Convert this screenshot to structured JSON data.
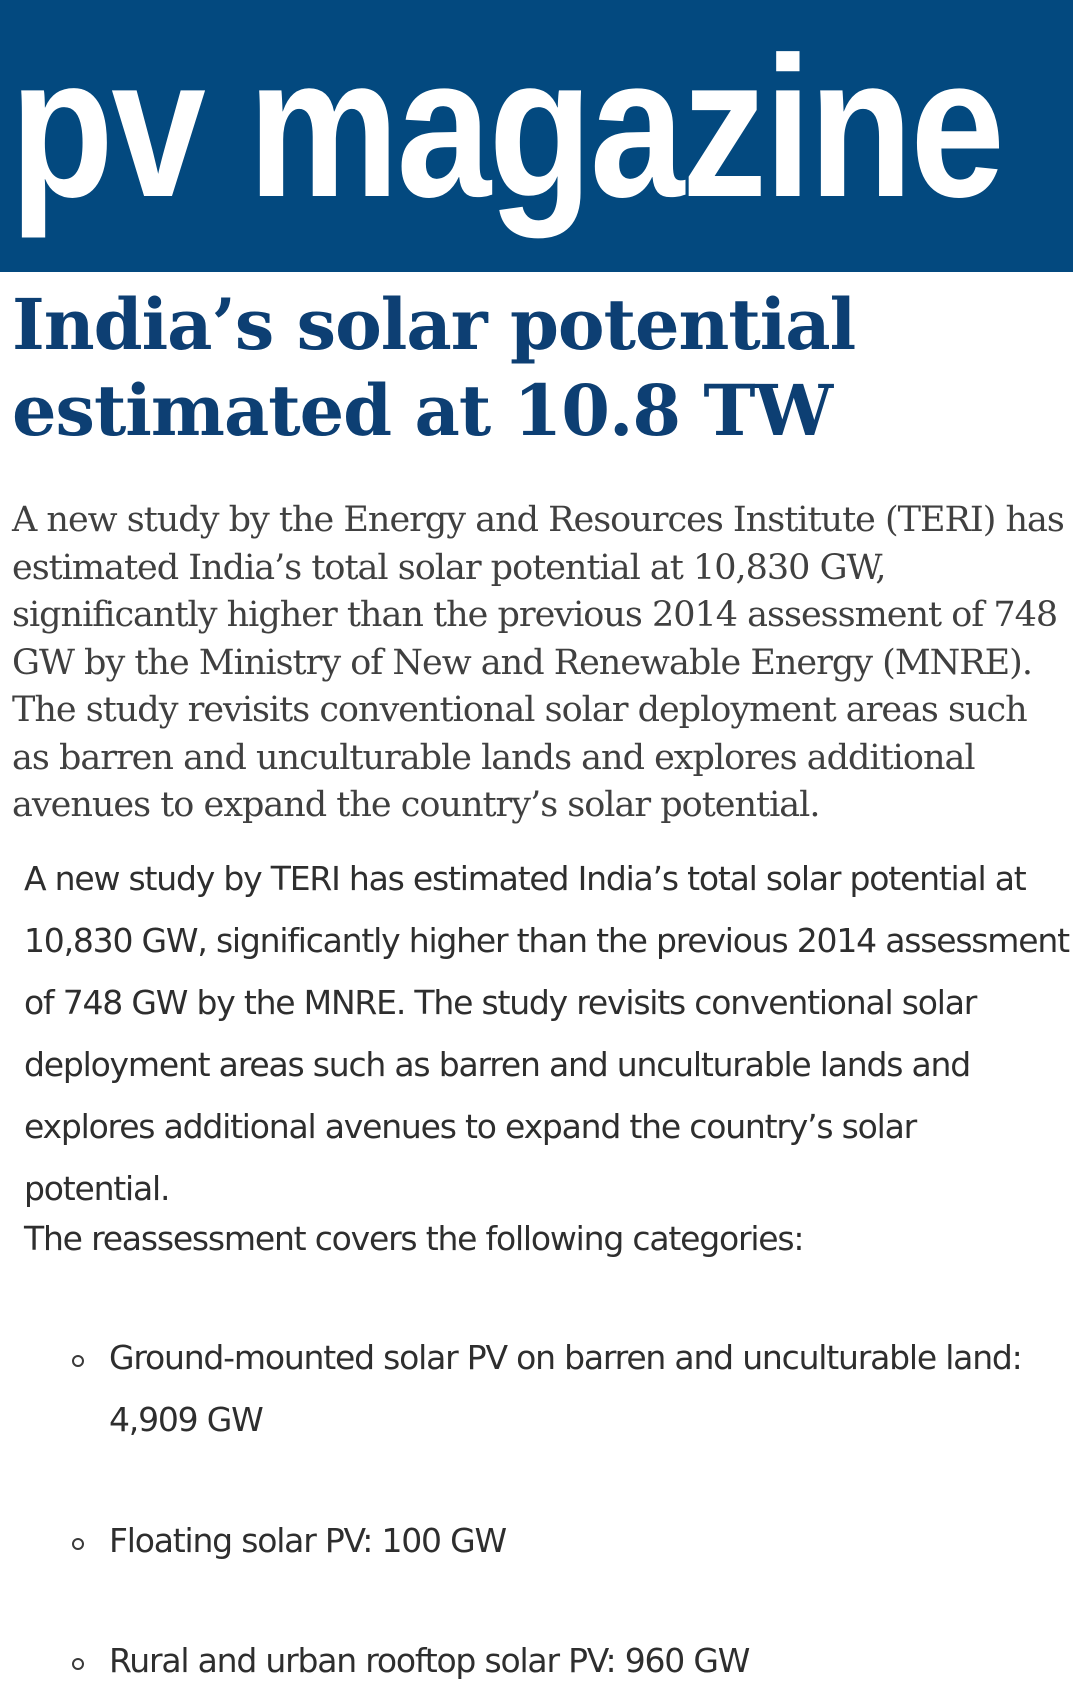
{
  "masthead": {
    "logo_text": "pv magazine",
    "background_color": "#03497f"
  },
  "article": {
    "headline": "India’s solar potential estimated at 10.8 TW",
    "lede": "A new study by the Energy and Resources Institute (TERI) has estimated India’s total solar potential at 10,830 GW, significantly higher than the previous 2014 assessment of 748 GW by the Ministry of New and Renewable Energy (MNRE). The study revisits conventional solar deployment areas such as barren and unculturable lands and explores additional avenues to expand the country’s solar potential.",
    "summary": "A new study by TERI has estimated India’s total solar potential at 10,830 GW, significantly higher than the previous 2014 assessment of 748 GW by the MNRE. The study revisits conventional solar deployment areas such as barren and unculturable lands and explores additional avenues to expand the country’s solar potential.",
    "categories_intro": "The reassessment covers the following categories:",
    "categories": [
      "Ground-mounted solar PV on barren and unculturable land: 4,909 GW",
      "Floating solar PV: 100 GW",
      "Rural and urban rooftop solar PV: 960 GW"
    ]
  }
}
